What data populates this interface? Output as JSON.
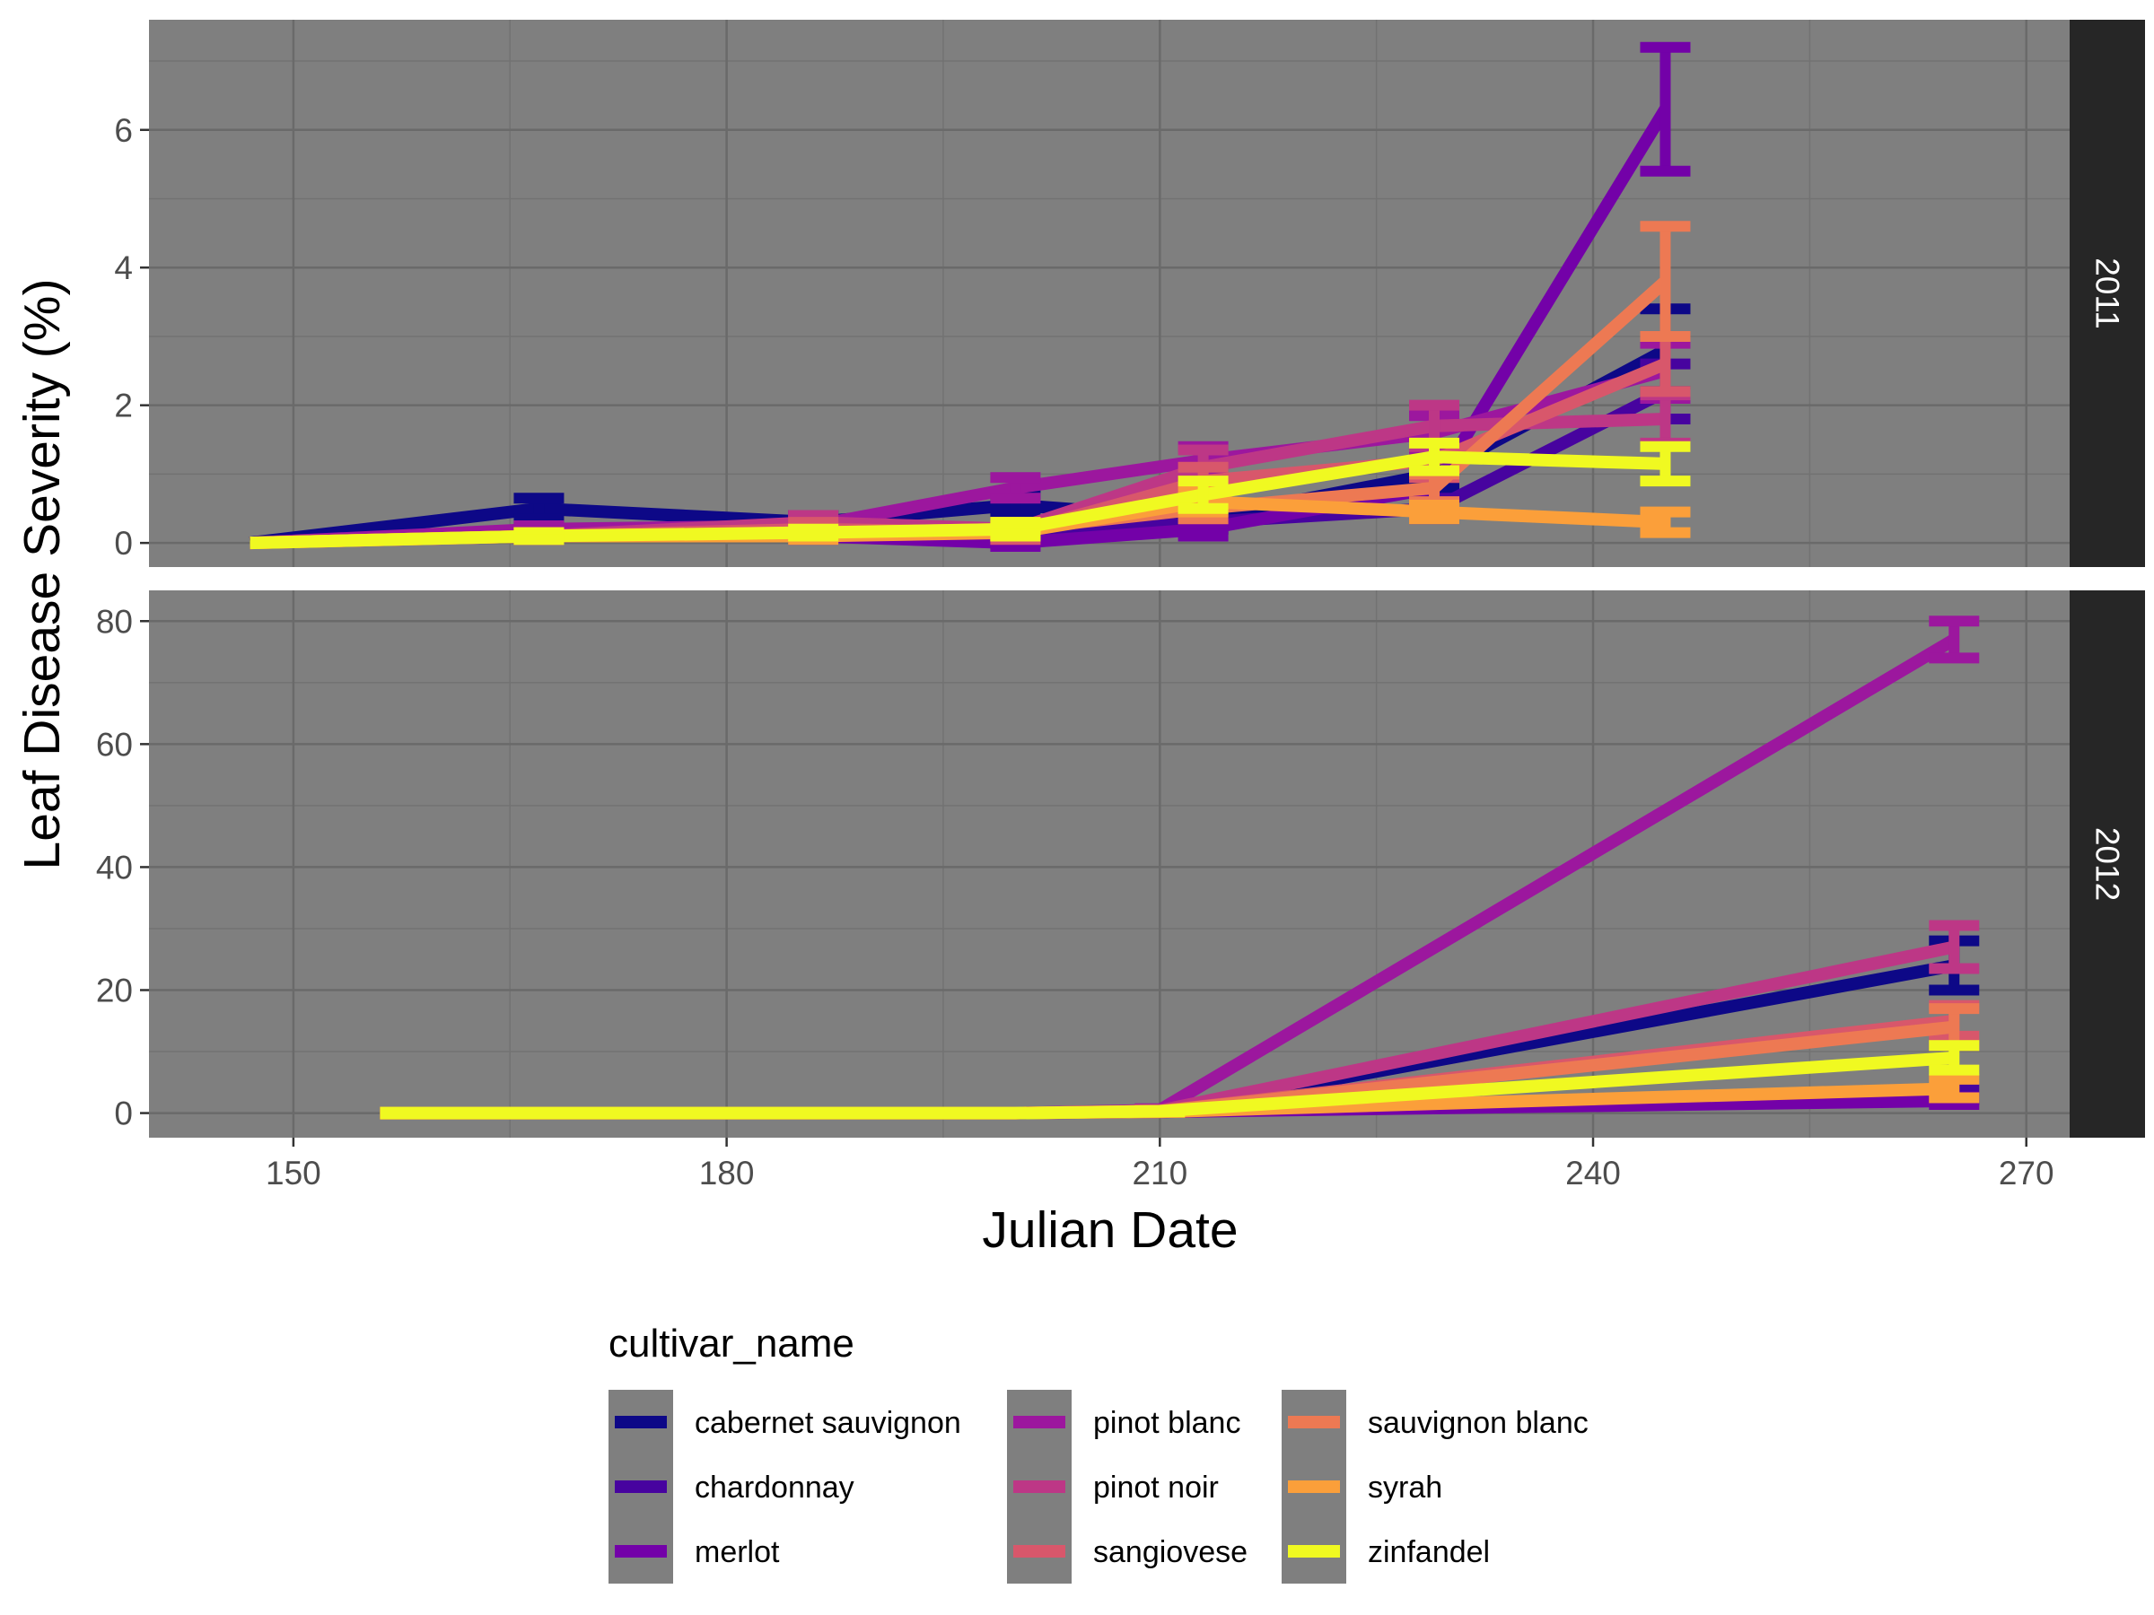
{
  "chart_data": {
    "type": "line",
    "xlabel": "Julian Date",
    "ylabel": "Leaf Disease Severity (%)",
    "xlim": [
      140,
      273
    ],
    "x_ticks": [
      150,
      180,
      210,
      240,
      270
    ],
    "legend": {
      "title": "cultivar_name",
      "position": "bottom"
    },
    "cultivars": [
      {
        "name": "cabernet sauvignon",
        "color": "#0D0887"
      },
      {
        "name": "chardonnay",
        "color": "#47039F"
      },
      {
        "name": "merlot",
        "color": "#7301A8"
      },
      {
        "name": "pinot blanc",
        "color": "#9C179E"
      },
      {
        "name": "pinot noir",
        "color": "#BD3786"
      },
      {
        "name": "sangiovese",
        "color": "#D8576B"
      },
      {
        "name": "sauvignon blanc",
        "color": "#ED7953"
      },
      {
        "name": "syrah",
        "color": "#FB9F3A"
      },
      {
        "name": "zinfandel",
        "color": "#F0F921"
      }
    ],
    "panels": [
      {
        "label": "2011",
        "ylim": [
          -0.35,
          7.6
        ],
        "y_ticks": [
          0,
          2,
          4,
          6
        ],
        "series": [
          {
            "name": "cabernet sauvignon",
            "x": [
              147,
              167,
              186,
              200,
              213,
              229,
              245
            ],
            "y": [
              0,
              0.5,
              0.3,
              0.55,
              0.35,
              1.0,
              2.8
            ],
            "err": [
              0,
              0.15,
              0.1,
              0.15,
              0.15,
              0.2,
              0.6
            ]
          },
          {
            "name": "chardonnay",
            "x": [
              147,
              167,
              186,
              200,
              213,
              229,
              245
            ],
            "y": [
              0,
              0.15,
              0.15,
              0.1,
              0.3,
              0.5,
              2.2
            ],
            "err": [
              0,
              0.05,
              0.05,
              0.05,
              0.1,
              0.15,
              0.4
            ]
          },
          {
            "name": "merlot",
            "x": [
              147,
              167,
              186,
              200,
              213,
              229,
              245
            ],
            "y": [
              0,
              0.1,
              0.1,
              0.0,
              0.2,
              0.8,
              6.3
            ],
            "err": [
              0,
              0.05,
              0.05,
              0.05,
              0.1,
              0.2,
              0.9
            ]
          },
          {
            "name": "pinot blanc",
            "x": [
              147,
              167,
              186,
              200,
              213,
              229,
              245
            ],
            "y": [
              0,
              0.2,
              0.25,
              0.8,
              1.2,
              1.6,
              2.5
            ],
            "err": [
              0,
              0.05,
              0.1,
              0.15,
              0.2,
              0.25,
              0.4
            ]
          },
          {
            "name": "pinot noir",
            "x": [
              147,
              167,
              186,
              200,
              213,
              229,
              245
            ],
            "y": [
              0,
              0.1,
              0.3,
              0.2,
              1.1,
              1.7,
              1.8
            ],
            "err": [
              0,
              0.05,
              0.1,
              0.1,
              0.25,
              0.3,
              0.35
            ]
          },
          {
            "name": "sangiovese",
            "x": [
              147,
              167,
              186,
              200,
              213,
              229,
              245
            ],
            "y": [
              0,
              0.1,
              0.2,
              0.15,
              0.9,
              1.2,
              2.6
            ],
            "err": [
              0,
              0.05,
              0.1,
              0.1,
              0.2,
              0.25,
              0.4
            ]
          },
          {
            "name": "sauvignon blanc",
            "x": [
              147,
              167,
              186,
              200,
              213,
              229,
              245
            ],
            "y": [
              0,
              0.1,
              0.15,
              0.2,
              0.5,
              0.8,
              3.8
            ],
            "err": [
              0,
              0.05,
              0.05,
              0.1,
              0.15,
              0.2,
              0.8
            ]
          },
          {
            "name": "syrah",
            "x": [
              147,
              167,
              186,
              200,
              213,
              229,
              245
            ],
            "y": [
              0,
              0.1,
              0.1,
              0.15,
              0.6,
              0.45,
              0.3
            ],
            "err": [
              0,
              0.05,
              0.05,
              0.05,
              0.15,
              0.1,
              0.15
            ]
          },
          {
            "name": "zinfandel",
            "x": [
              147,
              167,
              186,
              200,
              213,
              229,
              245
            ],
            "y": [
              0,
              0.1,
              0.15,
              0.2,
              0.7,
              1.25,
              1.15
            ],
            "err": [
              0,
              0.05,
              0.05,
              0.1,
              0.2,
              0.2,
              0.25
            ]
          }
        ]
      },
      {
        "label": "2012",
        "ylim": [
          -4,
          85
        ],
        "y_ticks": [
          0,
          20,
          40,
          60,
          80
        ],
        "series": [
          {
            "name": "cabernet sauvignon",
            "x": [
              156,
              172,
              186,
              200,
              210,
              265
            ],
            "y": [
              0,
              0,
              0,
              0,
              0.3,
              24
            ],
            "err": [
              0,
              0,
              0,
              0,
              0.1,
              4
            ]
          },
          {
            "name": "chardonnay",
            "x": [
              156,
              172,
              186,
              200,
              210,
              265
            ],
            "y": [
              0,
              0,
              0,
              0,
              0.2,
              3
            ],
            "err": [
              0,
              0,
              0,
              0,
              0.1,
              0.8
            ]
          },
          {
            "name": "merlot",
            "x": [
              156,
              172,
              186,
              200,
              210,
              265
            ],
            "y": [
              0,
              0,
              0,
              0,
              0.2,
              2
            ],
            "err": [
              0,
              0,
              0,
              0,
              0.1,
              0.6
            ]
          },
          {
            "name": "pinot blanc",
            "x": [
              156,
              172,
              186,
              200,
              210,
              265
            ],
            "y": [
              0,
              0,
              0,
              0,
              0.5,
              77
            ],
            "err": [
              0,
              0,
              0,
              0,
              0.2,
              3
            ]
          },
          {
            "name": "pinot noir",
            "x": [
              156,
              172,
              186,
              200,
              210,
              265
            ],
            "y": [
              0,
              0,
              0,
              0,
              0.4,
              27
            ],
            "err": [
              0,
              0,
              0,
              0,
              0.2,
              3.5
            ]
          },
          {
            "name": "sangiovese",
            "x": [
              156,
              172,
              186,
              200,
              210,
              265
            ],
            "y": [
              0,
              0,
              0,
              0,
              0.3,
              15
            ],
            "err": [
              0,
              0,
              0,
              0,
              0.1,
              2.5
            ]
          },
          {
            "name": "sauvignon blanc",
            "x": [
              156,
              172,
              186,
              200,
              210,
              265
            ],
            "y": [
              0,
              0,
              0,
              0,
              0.3,
              14
            ],
            "err": [
              0,
              0,
              0,
              0,
              0.1,
              3
            ]
          },
          {
            "name": "syrah",
            "x": [
              156,
              172,
              186,
              200,
              210,
              265
            ],
            "y": [
              0,
              0,
              0,
              0,
              0.2,
              4
            ],
            "err": [
              0,
              0,
              0,
              0,
              0.1,
              1.5
            ]
          },
          {
            "name": "zinfandel",
            "x": [
              156,
              172,
              186,
              200,
              210,
              265
            ],
            "y": [
              0,
              0,
              0,
              0,
              0.3,
              9
            ],
            "err": [
              0,
              0,
              0,
              0,
              0.1,
              2
            ]
          }
        ]
      }
    ]
  }
}
